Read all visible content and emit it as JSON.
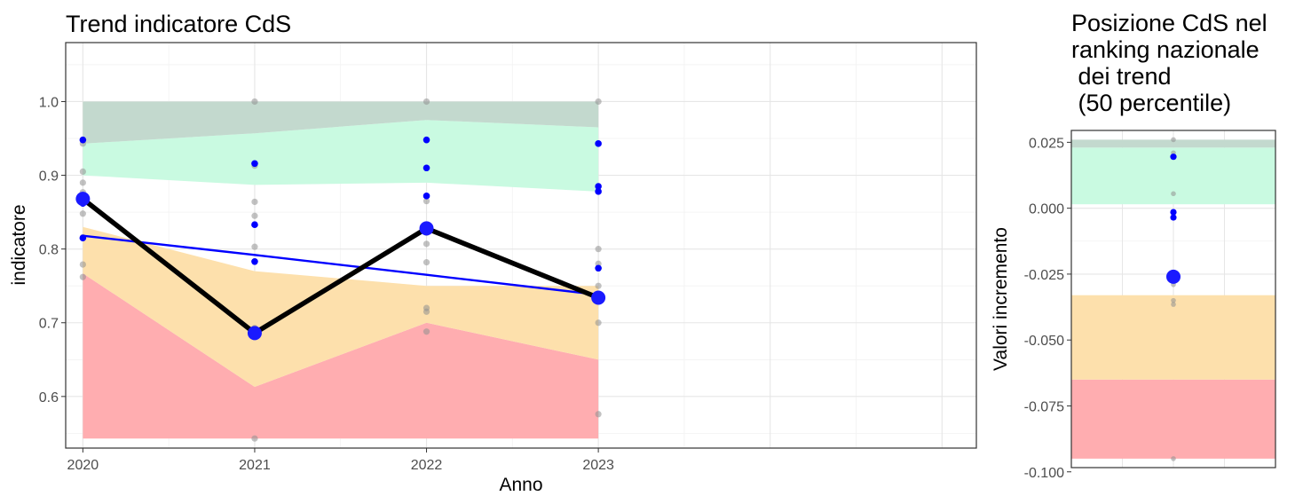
{
  "chart_data": [
    {
      "type": "line",
      "title": "Trend indicatore CdS",
      "xlabel": "Anno",
      "ylabel": "indicatore",
      "x": [
        "2020",
        "2021",
        "2022",
        "2023"
      ],
      "xlim": [
        2019.9,
        2025.2
      ],
      "ylim": [
        0.53,
        1.08
      ],
      "yticks": [
        "0.6",
        "0.7",
        "0.8",
        "0.9",
        "1.0"
      ],
      "ytick_values": [
        0.6,
        0.7,
        0.8,
        0.9,
        1.0
      ],
      "grid": true,
      "bands": [
        {
          "color": "#ffadb0",
          "lower": [
            0.543,
            0.543,
            0.543,
            0.543
          ],
          "upper": [
            0.767,
            0.613,
            0.7,
            0.65
          ]
        },
        {
          "color": "#fde0ac",
          "lower": [
            0.767,
            0.613,
            0.7,
            0.65
          ],
          "upper": [
            0.83,
            0.77,
            0.75,
            0.75
          ]
        },
        {
          "color": "#c9fae1",
          "lower": [
            0.9,
            0.887,
            0.89,
            0.878
          ],
          "upper": [
            0.943,
            0.957,
            0.975,
            0.965
          ]
        },
        {
          "color": "#c3d9ce",
          "lower": [
            0.943,
            0.957,
            0.975,
            0.965
          ],
          "upper": [
            1.0,
            1.0,
            1.0,
            1.0
          ]
        }
      ],
      "series": [
        {
          "values": [
            0.868,
            0.686,
            0.828,
            0.734
          ],
          "color": "#000000",
          "marker_color": "#1a1aff"
        },
        {
          "type": "trend",
          "values": [
            0.818,
            0.792,
            0.765,
            0.738
          ],
          "color": "#0000ff"
        }
      ],
      "points_gray": [
        {
          "x": "2020",
          "y": [
            0.943,
            0.905,
            0.89,
            0.877,
            0.848,
            0.816,
            0.779,
            0.762
          ]
        },
        {
          "x": "2021",
          "y": [
            1.0,
            0.913,
            0.864,
            0.845,
            0.803,
            0.783,
            0.693,
            0.543
          ]
        },
        {
          "x": "2022",
          "y": [
            1.0,
            0.865,
            0.822,
            0.807,
            0.782,
            0.72,
            0.715,
            0.688
          ]
        },
        {
          "x": "2023",
          "y": [
            1.0,
            0.8,
            0.78,
            0.75,
            0.7,
            0.576
          ]
        }
      ],
      "points_blue": [
        {
          "x": "2020",
          "y": [
            0.948,
            0.862,
            0.815
          ]
        },
        {
          "x": "2021",
          "y": [
            0.916,
            0.833,
            0.783
          ]
        },
        {
          "x": "2022",
          "y": [
            0.948,
            0.91,
            0.872
          ]
        },
        {
          "x": "2023",
          "y": [
            0.943,
            0.885,
            0.878,
            0.774
          ]
        }
      ]
    },
    {
      "type": "scatter",
      "title_lines": [
        "Posizione CdS nel",
        "ranking nazionale",
        " dei trend",
        " (50 percentile)"
      ],
      "ylabel": "Valori incremento",
      "ylim": [
        -0.0984,
        0.0295
      ],
      "yticks": [
        "0.025",
        "0.000",
        "-0.025",
        "-0.050",
        "-0.075",
        "-0.100"
      ],
      "ytick_values": [
        0.025,
        0.0,
        -0.025,
        -0.05,
        -0.075,
        -0.1
      ],
      "grid": true,
      "bands": [
        {
          "color": "#ffadb0",
          "lower": -0.095,
          "upper": -0.065
        },
        {
          "color": "#fde0ac",
          "lower": -0.065,
          "upper": -0.033
        },
        {
          "color": "#c9fae1",
          "lower": 0.0015,
          "upper": 0.023
        },
        {
          "color": "#c3d9ce",
          "lower": 0.023,
          "upper": 0.026
        }
      ],
      "points_gray": [
        0.026,
        0.021,
        0.0055,
        -0.0015,
        -0.026,
        -0.029,
        -0.035,
        -0.0365,
        -0.095
      ],
      "points_blue": [
        0.0195,
        -0.0015,
        -0.0035
      ],
      "highlight": {
        "value": -0.026,
        "color": "#1a1aff"
      }
    }
  ]
}
